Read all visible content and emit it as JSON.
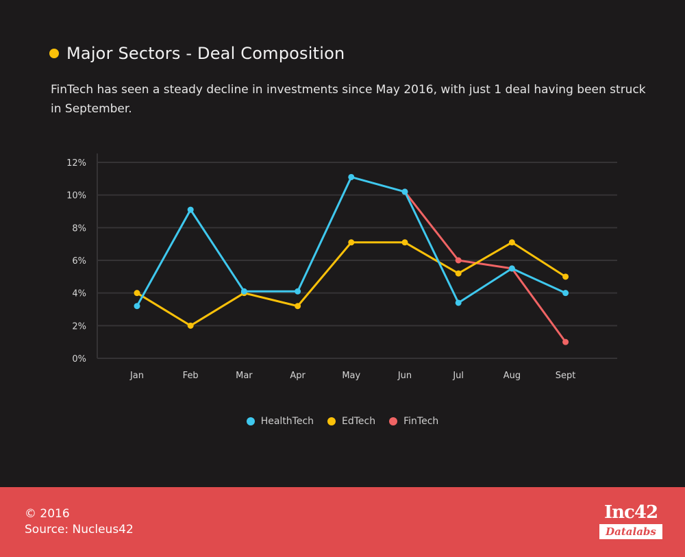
{
  "header": {
    "title": "Major Sectors - Deal Composition",
    "subtitle": "FinTech has seen a steady decline in investments since May 2016, with just 1 deal having been struck in September."
  },
  "chart_data": {
    "type": "line",
    "title": "Major Sectors - Deal Composition",
    "xlabel": "",
    "ylabel": "",
    "categories": [
      "Jan",
      "Feb",
      "Mar",
      "Apr",
      "May",
      "Jun",
      "Jul",
      "Aug",
      "Sept"
    ],
    "y_ticks": [
      "0%",
      "2%",
      "4%",
      "6%",
      "8%",
      "10%",
      "12%"
    ],
    "ylim": [
      0,
      12
    ],
    "grid": true,
    "legend_position": "bottom-center",
    "series": [
      {
        "name": "HealthTech",
        "color": "#3fc8ee",
        "values": [
          3.2,
          9.1,
          4.1,
          4.1,
          11.1,
          10.2,
          3.4,
          5.5,
          4.0
        ]
      },
      {
        "name": "EdTech",
        "color": "#fbc109",
        "values": [
          4.0,
          2.0,
          4.0,
          3.2,
          7.1,
          7.1,
          5.2,
          7.1,
          5.0
        ]
      },
      {
        "name": "FinTech",
        "color": "#f06464",
        "values": [
          null,
          null,
          null,
          null,
          null,
          10.2,
          6.0,
          5.5,
          1.0
        ]
      }
    ]
  },
  "legend": [
    {
      "label": "HealthTech",
      "color": "#3fc8ee"
    },
    {
      "label": "EdTech",
      "color": "#fbc109"
    },
    {
      "label": "FinTech",
      "color": "#f06464"
    }
  ],
  "footer": {
    "copyright": "© 2016",
    "source": "Source: Nucleus42",
    "logo_top": "Inc42",
    "logo_bottom": "Datalabs"
  }
}
